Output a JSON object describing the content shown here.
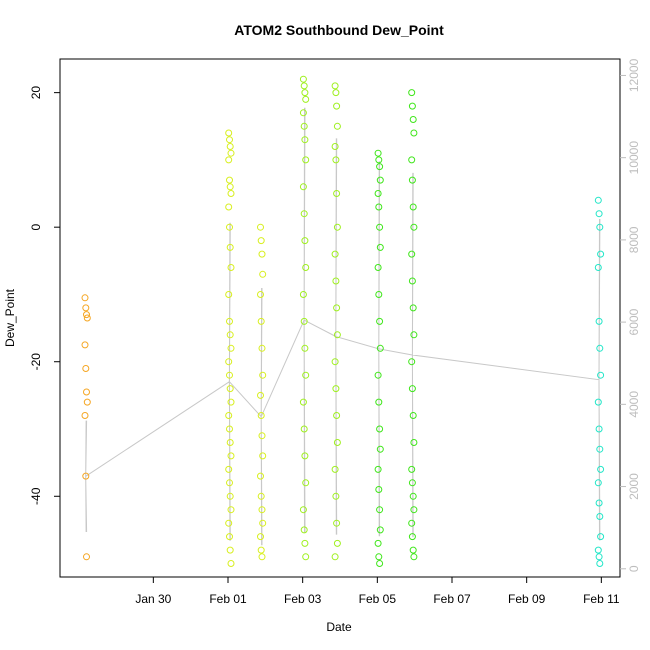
{
  "chart_data": {
    "type": "scatter",
    "title": "ATOM2 Southbound Dew_Point",
    "xlabel": "Date",
    "ylabel": "Dew_Point",
    "x_date_range": [
      "2000-01-27T12:00",
      "2000-02-11T12:00"
    ],
    "y_range_left": [
      -52,
      25
    ],
    "y_range_right": [
      -200,
      12400
    ],
    "x_ticks": [
      {
        "label": "Jan 30",
        "day": 30
      },
      {
        "label": "Feb 01",
        "day": 32
      },
      {
        "label": "Feb 03",
        "day": 34
      },
      {
        "label": "Feb 05",
        "day": 36
      },
      {
        "label": "Feb 07",
        "day": 38
      },
      {
        "label": "Feb 09",
        "day": 40
      },
      {
        "label": "Feb 11",
        "day": 42
      }
    ],
    "y_ticks_left": [
      "-40",
      "-20",
      "0",
      "20"
    ],
    "y_ticks_left_values": [
      -40,
      -20,
      0,
      20
    ],
    "y_ticks_right": [
      "0",
      "2000",
      "4000",
      "6000",
      "8000",
      "10000",
      "12000"
    ],
    "y_ticks_right_values": [
      0,
      2000,
      4000,
      6000,
      8000,
      10000,
      12000
    ],
    "grid": false,
    "series": [
      {
        "color": "#f5a623",
        "points": [
          {
            "day": 28.2,
            "ys": [
              -10.5,
              -12,
              -13,
              -13.5,
              -17.5,
              -21,
              -24.5,
              -26,
              -28,
              -37,
              -49
            ]
          }
        ]
      },
      {
        "color": "#d8ef1f",
        "points": [
          {
            "day": 32.05,
            "ys": [
              14,
              13,
              12,
              11,
              10,
              7,
              6,
              5,
              3,
              0,
              -3,
              -6,
              -10,
              -14,
              -16,
              -18,
              -20,
              -22,
              -24,
              -26,
              -28,
              -30,
              -32,
              -34,
              -36,
              -38,
              -40,
              -42,
              -44,
              -46,
              -48,
              -50
            ]
          },
          {
            "day": 32.9,
            "ys": [
              0,
              -2,
              -4,
              -7,
              -10,
              -14,
              -18,
              -22,
              -25,
              -28,
              -31,
              -34,
              -37,
              -40,
              -42,
              -44,
              -46,
              -48,
              -49
            ]
          }
        ]
      },
      {
        "color": "#9ff01f",
        "points": [
          {
            "day": 34.05,
            "ys": [
              22,
              21,
              20,
              19,
              17,
              15,
              13,
              10,
              6,
              2,
              -2,
              -6,
              -10,
              -14,
              -18,
              -22,
              -26,
              -30,
              -34,
              -38,
              -42,
              -45,
              -47,
              -49
            ]
          },
          {
            "day": 34.9,
            "ys": [
              21,
              20,
              18,
              15,
              12,
              10,
              5,
              0,
              -4,
              -8,
              -12,
              -16,
              -20,
              -24,
              -28,
              -32,
              -36,
              -40,
              -44,
              -47,
              -49
            ]
          }
        ]
      },
      {
        "color": "#3fe61a",
        "points": [
          {
            "day": 36.05,
            "ys": [
              11,
              10,
              9,
              7,
              5,
              3,
              0,
              -3,
              -6,
              -10,
              -14,
              -18,
              -22,
              -26,
              -30,
              -33,
              -36,
              -39,
              -42,
              -45,
              -47,
              -49,
              -50
            ]
          },
          {
            "day": 36.95,
            "ys": [
              20,
              18,
              16,
              14,
              10,
              7,
              3,
              0,
              -4,
              -8,
              -12,
              -16,
              -20,
              -24,
              -28,
              -32,
              -36,
              -38,
              -40,
              -42,
              -44,
              -46,
              -48,
              -49
            ]
          }
        ]
      },
      {
        "color": "#22e6c8",
        "points": [
          {
            "day": 41.95,
            "ys": [
              4,
              2,
              0,
              -4,
              -6,
              -14,
              -18,
              -22,
              -26,
              -30,
              -33,
              -36,
              -38,
              -41,
              -43,
              -46,
              -48,
              -49,
              -50
            ]
          }
        ]
      }
    ],
    "line_series": {
      "color": "#c8c8c8",
      "axis": "right"
    }
  }
}
